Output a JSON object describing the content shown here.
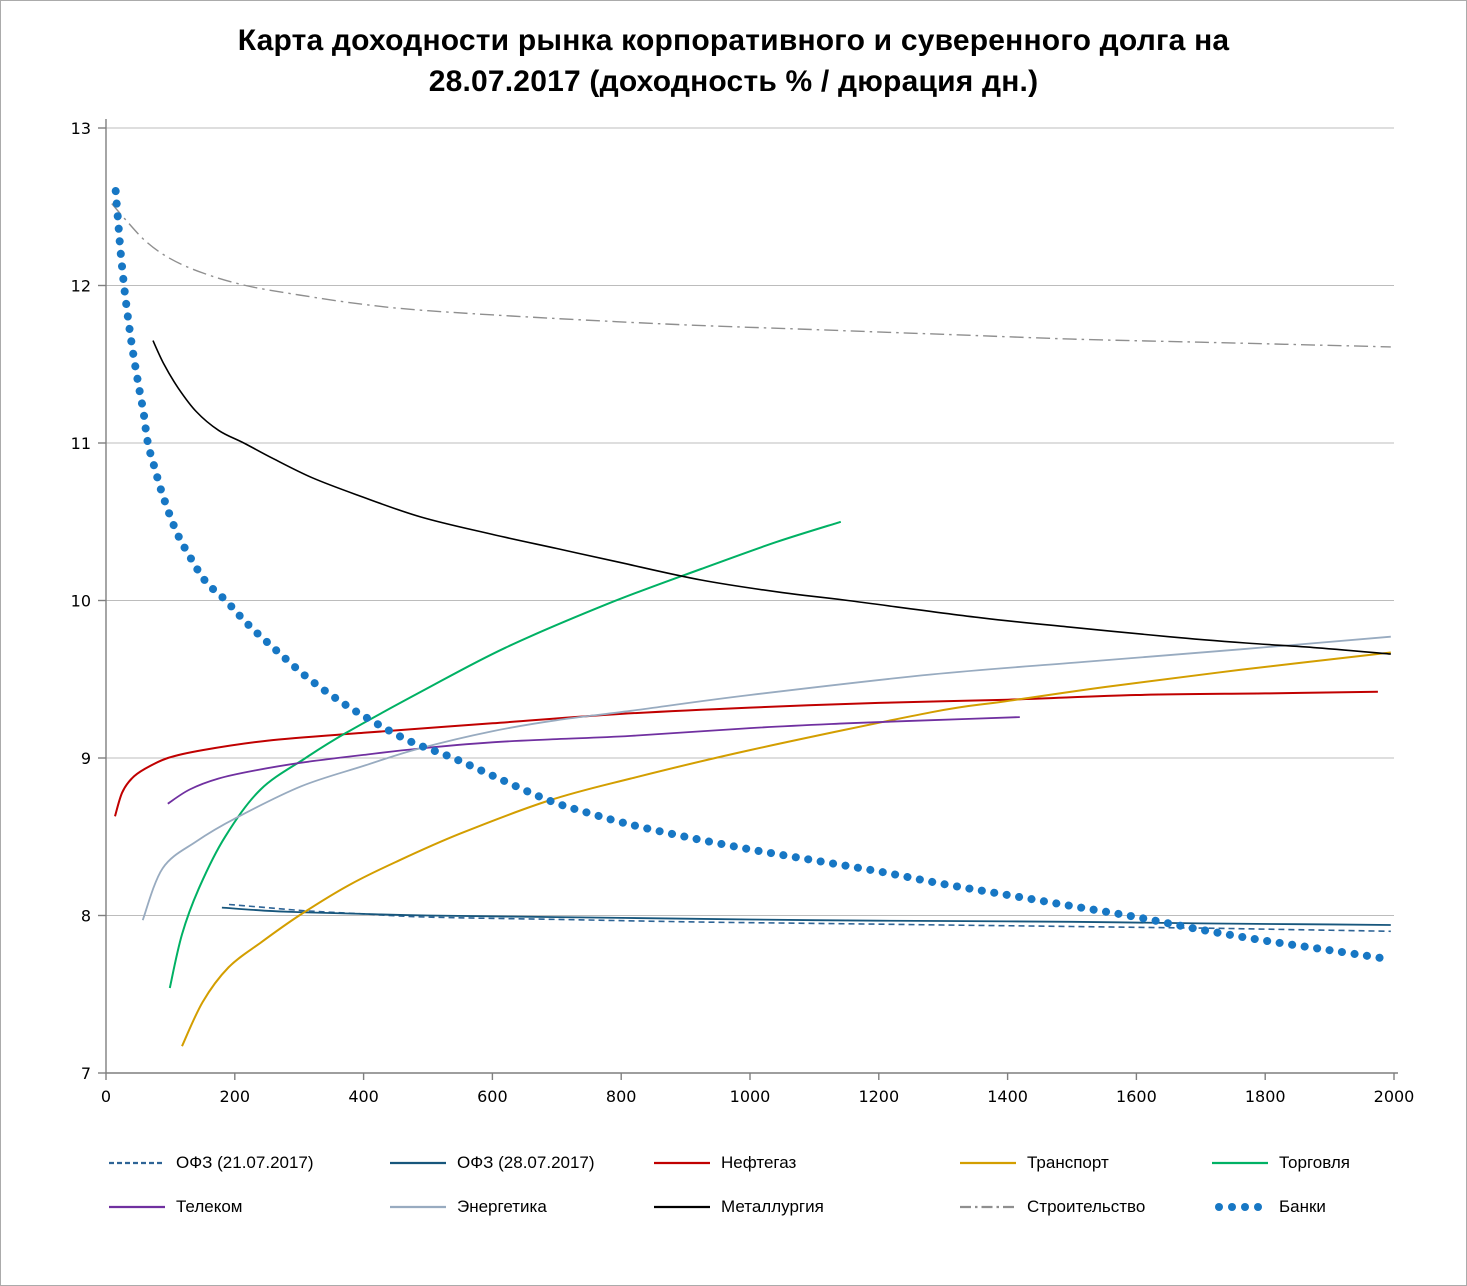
{
  "title_line1": "Карта доходности рынка корпоративного и суверенного долга на",
  "title_line2": "28.07.2017 (доходность % / дюрация дн.)",
  "chart_data": {
    "type": "line",
    "title": "Карта доходности рынка корпоративного и суверенного долга на 28.07.2017 (доходность % / дюрация дн.)",
    "xlabel": "дюрация дн.",
    "ylabel": "доходность %",
    "xlim": [
      0,
      2000
    ],
    "ylim": [
      7,
      13
    ],
    "x_ticks": [
      0,
      200,
      400,
      600,
      800,
      1000,
      1200,
      1400,
      1600,
      1800,
      2000
    ],
    "y_ticks": [
      7,
      8,
      9,
      10,
      11,
      12,
      13
    ],
    "grid": "horizontal",
    "legend_position": "bottom",
    "axis_color": "#7f7f7f",
    "grid_color": "#bcbcbc",
    "series": [
      {
        "id": "ofz-21",
        "name": "ОФЗ (21.07.2017)",
        "color": "#2e6496",
        "style": "dashed",
        "width": 1.6,
        "legend_row": 1,
        "points": [
          [
            191,
            8.07
          ],
          [
            250,
            8.05
          ],
          [
            310,
            8.03
          ],
          [
            400,
            8.01
          ],
          [
            500,
            7.99
          ],
          [
            700,
            7.975
          ],
          [
            900,
            7.96
          ],
          [
            1100,
            7.95
          ],
          [
            1300,
            7.94
          ],
          [
            1500,
            7.93
          ],
          [
            1700,
            7.92
          ],
          [
            1850,
            7.91
          ],
          [
            1995,
            7.9
          ]
        ]
      },
      {
        "id": "ofz-28",
        "name": "ОФЗ (28.07.2017)",
        "color": "#17567c",
        "style": "solid",
        "width": 1.8,
        "legend_row": 1,
        "points": [
          [
            180,
            8.05
          ],
          [
            250,
            8.03
          ],
          [
            310,
            8.02
          ],
          [
            400,
            8.01
          ],
          [
            500,
            8.0
          ],
          [
            700,
            7.99
          ],
          [
            900,
            7.98
          ],
          [
            1100,
            7.97
          ],
          [
            1300,
            7.965
          ],
          [
            1500,
            7.96
          ],
          [
            1700,
            7.95
          ],
          [
            1850,
            7.945
          ],
          [
            1995,
            7.94
          ]
        ]
      },
      {
        "id": "neftegaz",
        "name": "Нефтегаз",
        "color": "#c00000",
        "style": "solid",
        "width": 2,
        "legend_row": 1,
        "points": [
          [
            14,
            8.63
          ],
          [
            25,
            8.78
          ],
          [
            40,
            8.87
          ],
          [
            60,
            8.93
          ],
          [
            96,
            9.0
          ],
          [
            150,
            9.05
          ],
          [
            250,
            9.11
          ],
          [
            400,
            9.16
          ],
          [
            600,
            9.22
          ],
          [
            800,
            9.28
          ],
          [
            1000,
            9.32
          ],
          [
            1200,
            9.35
          ],
          [
            1400,
            9.37
          ],
          [
            1600,
            9.4
          ],
          [
            1800,
            9.41
          ],
          [
            1975,
            9.42
          ]
        ]
      },
      {
        "id": "transport",
        "name": "Транспорт",
        "color": "#d39e00",
        "style": "solid",
        "width": 2,
        "legend_row": 1,
        "points": [
          [
            118,
            7.17
          ],
          [
            150,
            7.45
          ],
          [
            190,
            7.67
          ],
          [
            241,
            7.83
          ],
          [
            300,
            8.0
          ],
          [
            376,
            8.19
          ],
          [
            450,
            8.34
          ],
          [
            550,
            8.52
          ],
          [
            688,
            8.73
          ],
          [
            815,
            8.87
          ],
          [
            1000,
            9.05
          ],
          [
            1281,
            9.29
          ],
          [
            1397,
            9.36
          ],
          [
            1550,
            9.45
          ],
          [
            1762,
            9.56
          ],
          [
            1995,
            9.67
          ]
        ]
      },
      {
        "id": "torgovlya",
        "name": "Торговля",
        "color": "#00b164",
        "style": "solid",
        "width": 2,
        "legend_row": 1,
        "points": [
          [
            99,
            7.54
          ],
          [
            118,
            7.88
          ],
          [
            145,
            8.18
          ],
          [
            185,
            8.5
          ],
          [
            240,
            8.8
          ],
          [
            310,
            9.0
          ],
          [
            373,
            9.16
          ],
          [
            489,
            9.42
          ],
          [
            620,
            9.7
          ],
          [
            780,
            9.98
          ],
          [
            924,
            10.2
          ],
          [
            1040,
            10.37
          ],
          [
            1141,
            10.5
          ]
        ]
      },
      {
        "id": "telekom",
        "name": "Телеком",
        "color": "#7030a0",
        "style": "solid",
        "width": 1.8,
        "legend_row": 2,
        "points": [
          [
            96,
            8.71
          ],
          [
            130,
            8.8
          ],
          [
            175,
            8.87
          ],
          [
            230,
            8.92
          ],
          [
            303,
            8.97
          ],
          [
            400,
            9.02
          ],
          [
            486,
            9.06
          ],
          [
            600,
            9.1
          ],
          [
            700,
            9.12
          ],
          [
            815,
            9.14
          ],
          [
            1000,
            9.19
          ],
          [
            1150,
            9.22
          ],
          [
            1281,
            9.24
          ],
          [
            1419,
            9.26
          ]
        ]
      },
      {
        "id": "energetika",
        "name": "Энергетика",
        "color": "#98abc0",
        "style": "solid",
        "width": 1.8,
        "legend_row": 2,
        "points": [
          [
            57,
            7.97
          ],
          [
            88,
            8.3
          ],
          [
            140,
            8.47
          ],
          [
            202,
            8.62
          ],
          [
            303,
            8.82
          ],
          [
            400,
            8.95
          ],
          [
            486,
            9.06
          ],
          [
            600,
            9.17
          ],
          [
            700,
            9.24
          ],
          [
            815,
            9.3
          ],
          [
            1000,
            9.4
          ],
          [
            1281,
            9.53
          ],
          [
            1519,
            9.61
          ],
          [
            1762,
            9.69
          ],
          [
            1995,
            9.77
          ]
        ]
      },
      {
        "id": "metallurgiya",
        "name": "Металлургия",
        "color": "#000000",
        "style": "solid",
        "width": 1.6,
        "legend_row": 2,
        "points": [
          [
            73,
            11.65
          ],
          [
            90,
            11.5
          ],
          [
            112,
            11.35
          ],
          [
            140,
            11.2
          ],
          [
            175,
            11.08
          ],
          [
            214,
            11.0
          ],
          [
            260,
            10.9
          ],
          [
            320,
            10.78
          ],
          [
            390,
            10.67
          ],
          [
            489,
            10.53
          ],
          [
            600,
            10.42
          ],
          [
            700,
            10.33
          ],
          [
            800,
            10.24
          ],
          [
            924,
            10.13
          ],
          [
            1050,
            10.05
          ],
          [
            1152,
            10.0
          ],
          [
            1359,
            9.89
          ],
          [
            1500,
            9.83
          ],
          [
            1650,
            9.77
          ],
          [
            1770,
            9.73
          ],
          [
            1880,
            9.7
          ],
          [
            1995,
            9.66
          ]
        ]
      },
      {
        "id": "stroitelstvo",
        "name": "Строительство",
        "color": "#8f8f8f",
        "style": "dashdot",
        "width": 1.4,
        "legend_row": 2,
        "points": [
          [
            9,
            12.52
          ],
          [
            30,
            12.42
          ],
          [
            62,
            12.28
          ],
          [
            100,
            12.17
          ],
          [
            150,
            12.08
          ],
          [
            217,
            12.0
          ],
          [
            300,
            11.94
          ],
          [
            400,
            11.88
          ],
          [
            500,
            11.84
          ],
          [
            700,
            11.79
          ],
          [
            900,
            11.75
          ],
          [
            1100,
            11.72
          ],
          [
            1300,
            11.69
          ],
          [
            1500,
            11.66
          ],
          [
            1700,
            11.64
          ],
          [
            1995,
            11.61
          ]
        ]
      },
      {
        "id": "banki",
        "name": "Банки",
        "color": "#1777c4",
        "style": "dots",
        "width": 8,
        "legend_row": 2,
        "points": [
          [
            15,
            12.6
          ],
          [
            19,
            12.4
          ],
          [
            23,
            12.2
          ],
          [
            28,
            12.0
          ],
          [
            34,
            11.8
          ],
          [
            41,
            11.6
          ],
          [
            50,
            11.38
          ],
          [
            58,
            11.2
          ],
          [
            65,
            11.0
          ],
          [
            75,
            10.85
          ],
          [
            88,
            10.67
          ],
          [
            109,
            10.44
          ],
          [
            130,
            10.28
          ],
          [
            155,
            10.12
          ],
          [
            186,
            10.0
          ],
          [
            220,
            9.85
          ],
          [
            260,
            9.7
          ],
          [
            310,
            9.52
          ],
          [
            360,
            9.37
          ],
          [
            407,
            9.25
          ],
          [
            470,
            9.11
          ],
          [
            539,
            9.0
          ],
          [
            610,
            8.87
          ],
          [
            688,
            8.73
          ],
          [
            750,
            8.65
          ],
          [
            812,
            8.58
          ],
          [
            900,
            8.5
          ],
          [
            1000,
            8.42
          ],
          [
            1100,
            8.35
          ],
          [
            1200,
            8.28
          ],
          [
            1300,
            8.2
          ],
          [
            1400,
            8.13
          ],
          [
            1500,
            8.06
          ],
          [
            1600,
            7.99
          ],
          [
            1700,
            7.91
          ],
          [
            1800,
            7.84
          ],
          [
            1900,
            7.78
          ],
          [
            1980,
            7.73
          ]
        ]
      }
    ]
  }
}
